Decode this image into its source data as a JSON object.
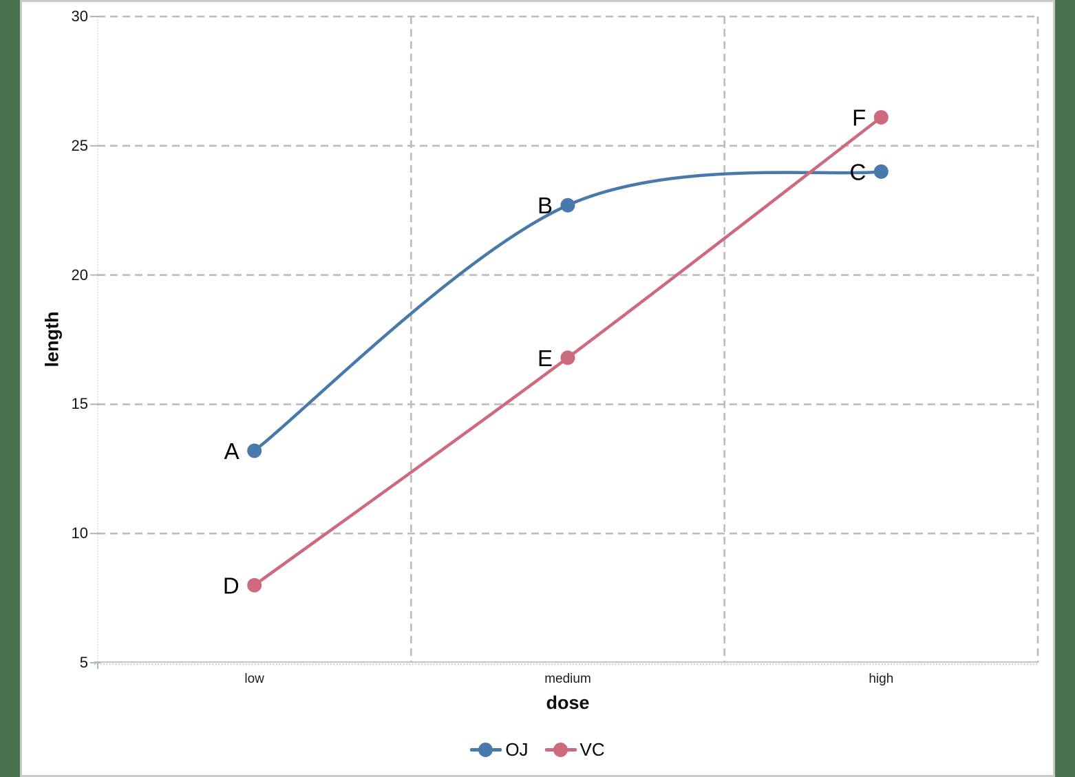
{
  "window": {
    "background_color": "#4a7251",
    "panel_border_color": "#c9c9c9",
    "panel_background": "#ffffff"
  },
  "colors": {
    "gridline": "#bcbcbc",
    "axis_line": "#c6c6ca",
    "tick": "#a9b5c1",
    "series_oj": "#4879ab",
    "series_vc": "#cd6a7d"
  },
  "chart_data": {
    "type": "line",
    "categories": [
      "low",
      "medium",
      "high"
    ],
    "series": [
      {
        "name": "OJ",
        "color": "#4879ab",
        "values": [
          13.2,
          22.7,
          24.0
        ],
        "point_labels": [
          "A",
          "B",
          "C"
        ]
      },
      {
        "name": "VC",
        "color": "#cd6a7d",
        "values": [
          8.0,
          16.8,
          26.1
        ],
        "point_labels": [
          "D",
          "E",
          "F"
        ]
      }
    ],
    "title": "",
    "xlabel": "dose",
    "ylabel": "length",
    "ylim": [
      5,
      30
    ],
    "yticks": [
      5,
      10,
      15,
      20,
      25,
      30
    ],
    "grid": "dashed-horizontal-and-category-boundaries",
    "marker": "filled-circle",
    "line_smoothing": "spline",
    "legend_position": "bottom-center",
    "legend_entries": [
      "OJ",
      "VC"
    ]
  }
}
